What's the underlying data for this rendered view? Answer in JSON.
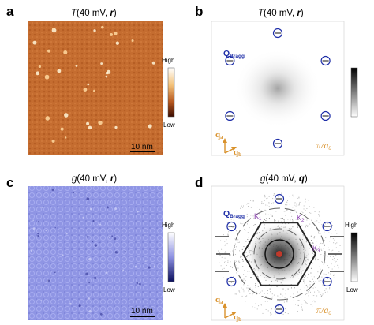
{
  "panels": {
    "a": {
      "letter": "a",
      "title_prefix": "T",
      "title_args": "(40 mV, ",
      "title_var": "r",
      "title_end": ")",
      "cb_high": "High",
      "cb_low": "Low",
      "scalebar": "10 nm"
    },
    "b": {
      "letter": "b",
      "title_prefix": "T",
      "title_args": "(40 mV, ",
      "title_var": "r",
      "title_end": ")",
      "bragg": "Q",
      "bragg_sub": "Bragg",
      "qa": "q",
      "qa_sub": "a",
      "qb": "q",
      "qb_sub": "b",
      "pi_num": "π/",
      "pi_den": "a",
      "pi_sub": "0"
    },
    "c": {
      "letter": "c",
      "title_prefix": "g",
      "title_args": "(40 mV, ",
      "title_var": "r",
      "title_end": ")",
      "cb_high": "High",
      "cb_low": "Low",
      "scalebar": "10 nm"
    },
    "d": {
      "letter": "d",
      "title_prefix": "g",
      "title_args": "(40 mV, ",
      "title_var": "q",
      "title_end": ")",
      "bragg": "Q",
      "bragg_sub": "Bragg",
      "k1": "K",
      "k1_sub": "1",
      "k2": "K",
      "k2_sub": "2",
      "k3": "K",
      "k3_sub": "3",
      "qa": "q",
      "qa_sub": "a",
      "qb": "q",
      "qb_sub": "b",
      "pi_num": "π/",
      "pi_den": "a",
      "pi_sub": "0",
      "cb_high": "High",
      "cb_low": "Low"
    }
  },
  "colors": {
    "map_a": "#c06a2e",
    "map_c": "#8e93e6",
    "bragg": "#1f2fa8",
    "axis": "#d9922c"
  }
}
